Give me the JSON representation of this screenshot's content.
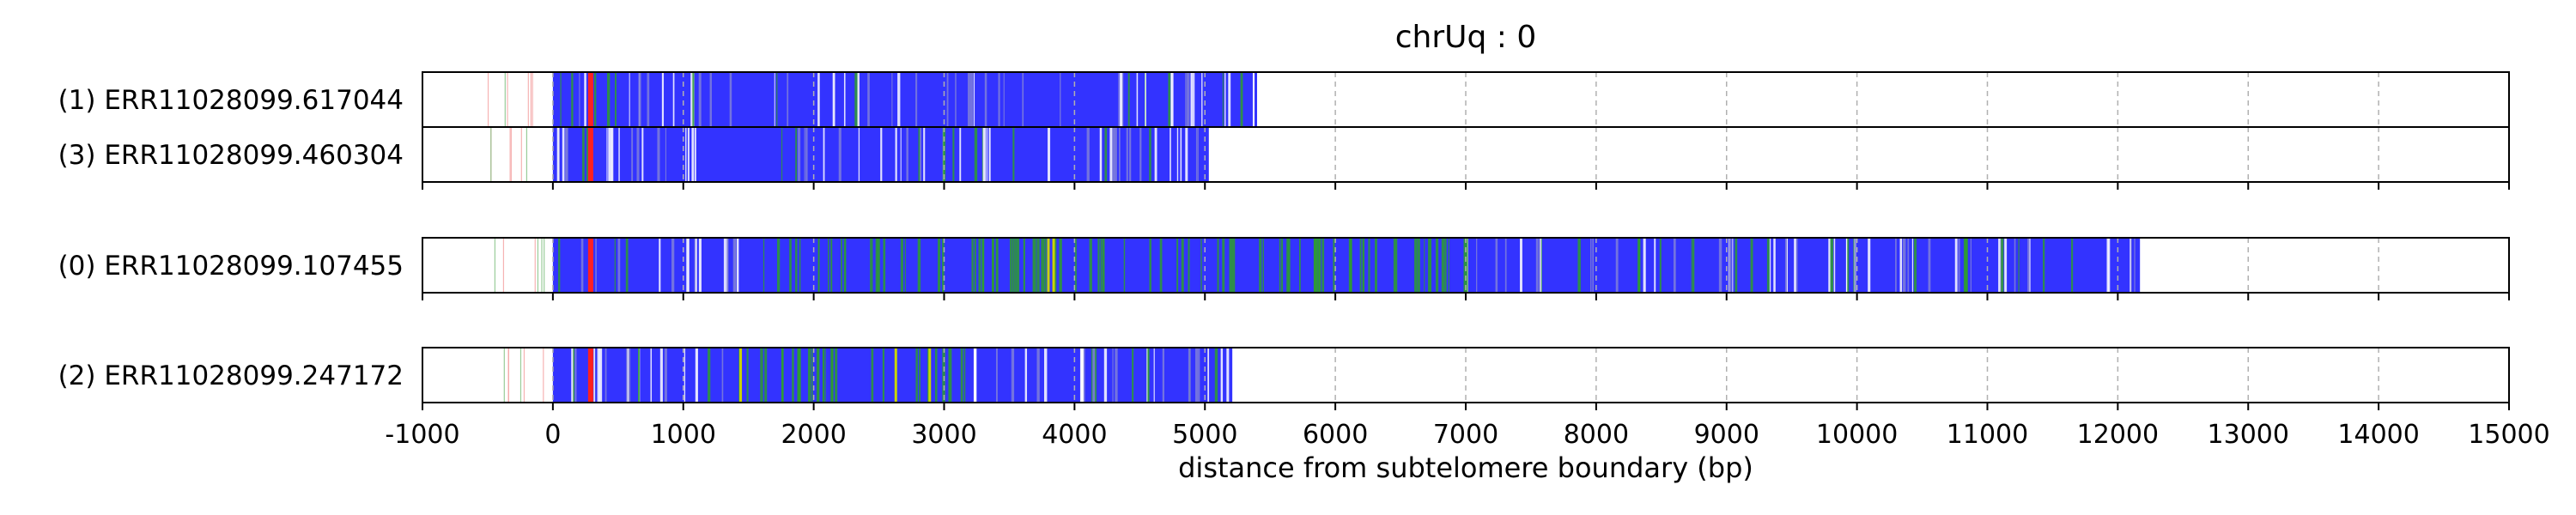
{
  "chart_data": {
    "type": "track",
    "title": "chrUq : 0",
    "xlabel": "distance from subtelomere boundary (bp)",
    "xlim": [
      -1000,
      15000
    ],
    "xticks": [
      -1000,
      0,
      1000,
      2000,
      3000,
      4000,
      5000,
      6000,
      7000,
      8000,
      9000,
      10000,
      11000,
      12000,
      13000,
      14000,
      15000
    ],
    "grid": "vertical dashed",
    "colors": {
      "main": "#3333ff",
      "mismatch_green": "#2e9e2e",
      "mismatch_yellow": "#c8d400",
      "marker_red": "#ff2020",
      "gap": "#ffffff"
    },
    "tracks": [
      {
        "label": "(1) ERR11028099.617044",
        "read_end": 5400,
        "subtel_start": -500,
        "panel": 0
      },
      {
        "label": "(3) ERR11028099.460304",
        "read_end": 5030,
        "subtel_start": -560,
        "panel": 0
      },
      {
        "label": "(0) ERR11028099.107455",
        "read_end": 12170,
        "subtel_start": -560,
        "panel": 1
      },
      {
        "label": "(2) ERR11028099.247172",
        "read_end": 5210,
        "subtel_start": -560,
        "panel": 2
      }
    ]
  }
}
